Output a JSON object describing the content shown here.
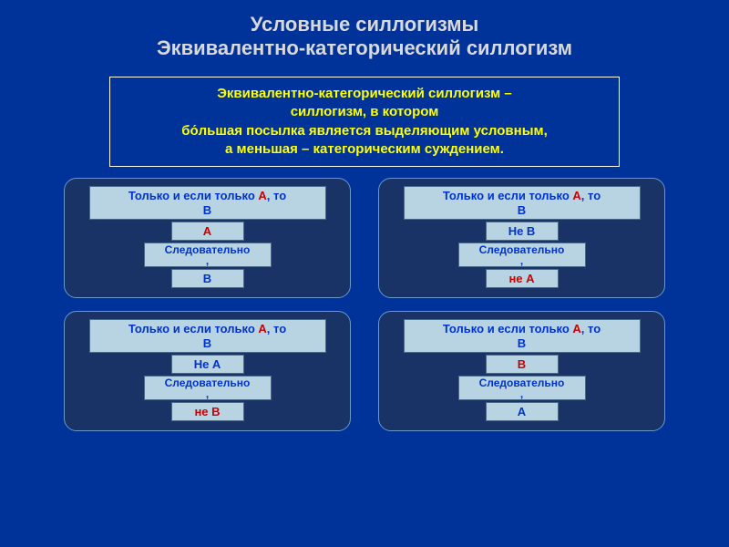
{
  "title": {
    "line1": "Условные силлогизмы",
    "line2": "Эквивалентно-категорический силлогизм"
  },
  "definition": {
    "term": "Эквивалентно-категорический силлогизм",
    "dash": " – ",
    "body1": "силлогизм, в котором",
    "body2": "бо́льшая посылка является выделяющим условным,",
    "body3": "а меньшая – категорическим суждением."
  },
  "premise": {
    "prefix": "Только и если только ",
    "A": "А",
    "mid": ", то",
    "B": "В"
  },
  "follows": "Следовательно",
  "comma": ",",
  "cards": [
    {
      "minor": "А",
      "minorColor": "red",
      "conclusion": "В",
      "conclColor": "blue"
    },
    {
      "minor": "Не В",
      "minorColor": "blue",
      "conclusion": "не А",
      "conclColor": "red"
    },
    {
      "minor": "Не А",
      "minorColor": "blue",
      "conclusion": "не В",
      "conclColor": "red"
    },
    {
      "minor": "В",
      "minorColor": "red",
      "conclusion": "А",
      "conclColor": "blue"
    }
  ],
  "colors": {
    "background": "#003399",
    "title": "#d9d9d9",
    "def_text": "#ffff00",
    "box_bg": "#b8d4e3",
    "box_border": "#4a6a8a",
    "card_bg": "#1a3366",
    "card_border": "#6699cc",
    "blue_text": "#0033cc",
    "red_text": "#cc0000"
  }
}
